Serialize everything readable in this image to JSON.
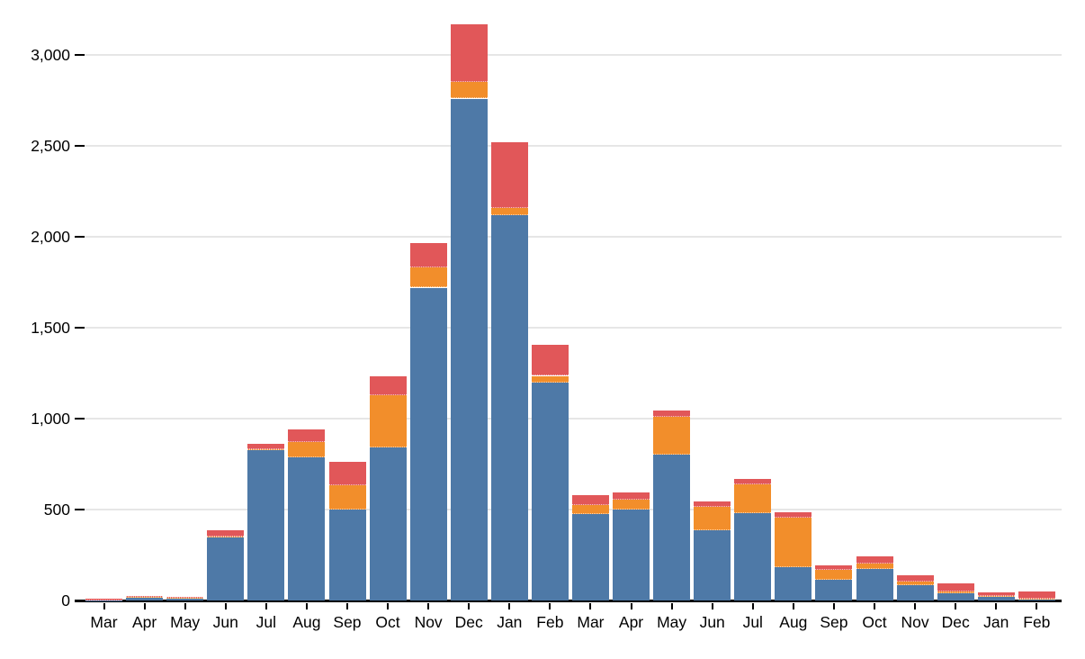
{
  "chart_data": {
    "type": "bar",
    "stacked": true,
    "title": "",
    "xlabel": "",
    "ylabel": "",
    "categories": [
      "Mar",
      "Apr",
      "May",
      "Jun",
      "Jul",
      "Aug",
      "Sep",
      "Oct",
      "Nov",
      "Dec",
      "Jan",
      "Feb",
      "Mar",
      "Apr",
      "May",
      "Jun",
      "Jul",
      "Aug",
      "Sep",
      "Oct",
      "Nov",
      "Dec",
      "Jan",
      "Feb"
    ],
    "series": [
      {
        "name": "series-blue",
        "color": "#4e79a7",
        "values": [
          2,
          18,
          14,
          345,
          825,
          785,
          500,
          840,
          1720,
          2760,
          2120,
          1200,
          475,
          500,
          800,
          385,
          480,
          185,
          115,
          175,
          85,
          40,
          22,
          10
        ]
      },
      {
        "name": "series-orange",
        "color": "#f28e2b",
        "values": [
          0,
          1,
          3,
          5,
          5,
          85,
          135,
          290,
          110,
          90,
          40,
          35,
          50,
          55,
          210,
          130,
          160,
          270,
          55,
          30,
          20,
          10,
          3,
          2
        ]
      },
      {
        "name": "series-red",
        "color": "#e15759",
        "values": [
          8,
          8,
          3,
          35,
          30,
          70,
          130,
          105,
          135,
          320,
          360,
          170,
          55,
          40,
          35,
          30,
          30,
          30,
          25,
          40,
          35,
          45,
          20,
          38
        ]
      }
    ],
    "y_axis": {
      "ticks": [
        0,
        500,
        1000,
        1500,
        2000,
        2500,
        3000
      ],
      "tick_labels": [
        "0",
        "500",
        "1,000",
        "1,500",
        "2,000",
        "2,500",
        "3,000"
      ],
      "range": [
        0,
        3220
      ]
    },
    "grid": "horizontal",
    "legend_position": "none",
    "colors": {
      "background": "#ffffff",
      "grid": "#e6e6e6",
      "axis": "#000000",
      "text": "#000000"
    }
  }
}
